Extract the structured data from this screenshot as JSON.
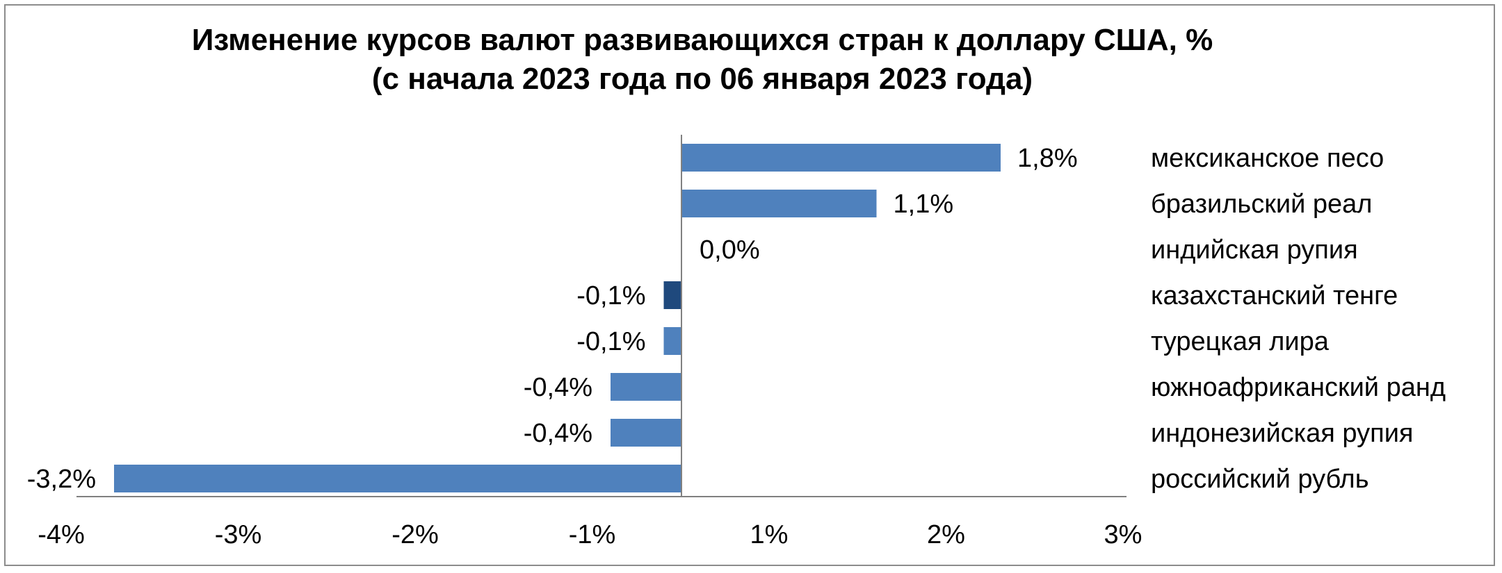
{
  "colors": {
    "bar": "#4f81bd",
    "bar_highlight": "#1f497d",
    "axis": "#808080"
  },
  "chart_data": {
    "type": "bar",
    "orientation": "horizontal",
    "title": "Изменение курсов валют развивающихся стран к доллару США, %",
    "subtitle": "(с начала 2023 года по 06 января 2023 года)",
    "categories": [
      "мексиканское песо",
      "бразильский реал",
      "индийская рупия",
      "казахстанский тенге",
      "турецкая лира",
      "южноафриканский ранд",
      "индонезийская рупия",
      "российский рубль"
    ],
    "values": [
      1.8,
      1.1,
      0.0,
      -0.1,
      -0.1,
      -0.4,
      -0.4,
      -3.2
    ],
    "data_labels": [
      "1,8%",
      "1,1%",
      "0,0%",
      "-0,1%",
      "-0,1%",
      "-0,4%",
      "-0,4%",
      "-3,2%"
    ],
    "highlight": "казахстанский тенге",
    "xlim": [
      -4,
      3
    ],
    "xticks": [
      -4,
      -3,
      -2,
      -1,
      1,
      2,
      3
    ],
    "xtick_labels": [
      "-4%",
      "-3%",
      "-2%",
      "-1%",
      "1%",
      "2%",
      "3%"
    ],
    "grid": false,
    "legend": "none"
  }
}
